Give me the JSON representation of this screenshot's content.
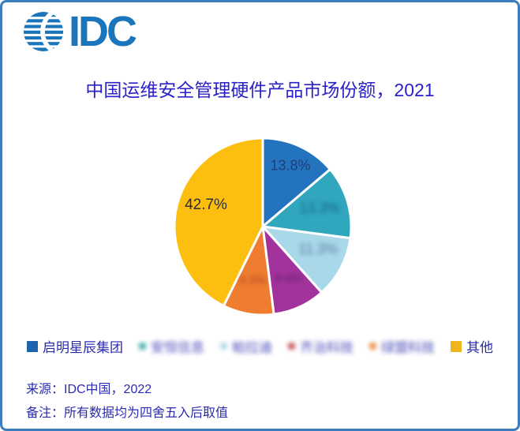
{
  "frame": {
    "border_color": "#3b7dbf",
    "background": "#ffffff"
  },
  "logo": {
    "brand": "IDC",
    "color": "#1b75bb"
  },
  "header": {
    "title": "中国运维安全管理硬件产品市场份额，2021",
    "title_color": "#2b21c8"
  },
  "chart_data": {
    "type": "pie",
    "title": "中国运维安全管理硬件产品市场份额，2021",
    "unit": "percent",
    "start_angle_deg": 0,
    "direction": "clockwise",
    "legend_position": "bottom",
    "slices": [
      {
        "name": "启明星辰集团",
        "value": 13.8,
        "label": "13.8%",
        "color": "#2473be",
        "redacted": false
      },
      {
        "name": "[blurred vendor]",
        "value": 13.3,
        "label": "13.3%",
        "color": "#30a7bd",
        "redacted": true,
        "estimated": true
      },
      {
        "name": "[blurred vendor]",
        "value": 11.3,
        "label": "11.3%",
        "color": "#a9d8e8",
        "redacted": true,
        "estimated": true
      },
      {
        "name": "[blurred vendor]",
        "value": 9.6,
        "label": "9.6%",
        "color": "#a2339c",
        "redacted": true,
        "estimated": true
      },
      {
        "name": "[blurred vendor]",
        "value": 9.3,
        "label": "9.3%",
        "color": "#ee7d2f",
        "redacted": true,
        "estimated": true
      },
      {
        "name": "其他",
        "value": 42.7,
        "label": "42.7%",
        "color": "#fcbf10",
        "redacted": false
      }
    ]
  },
  "legend": {
    "items": [
      {
        "label": "启明星辰集团",
        "marker_color": "#1d64ad",
        "redacted": false
      },
      {
        "label": "安恒信息",
        "marker_color": "#3aa8a8",
        "redacted": true
      },
      {
        "label": "帕拉迪",
        "marker_color": "#a8d5e5",
        "redacted": true
      },
      {
        "label": "齐治科技",
        "marker_color": "#c14b52",
        "redacted": true
      },
      {
        "label": "绿盟科技",
        "marker_color": "#e8853a",
        "redacted": true
      },
      {
        "label": "其他",
        "marker_color": "#f0b41c",
        "redacted": false
      }
    ]
  },
  "footer": {
    "source": "来源：IDC中国，2022",
    "note": "备注：所有数据均为四舍五入后取值"
  }
}
